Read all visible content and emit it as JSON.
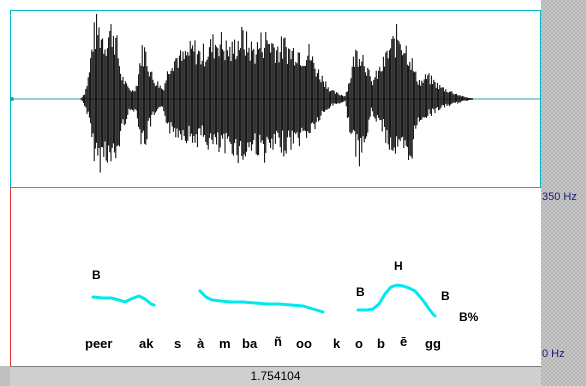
{
  "scale": {
    "top_label": "350 Hz",
    "bottom_label": "0 Hz"
  },
  "time_readout": "1.754104",
  "tones": [
    "B",
    "B",
    "H",
    "B",
    "B%"
  ],
  "syllables": [
    "peer",
    "ak",
    "s",
    "à",
    "m",
    "ba",
    "ñ",
    "oo",
    "k",
    "o",
    "b",
    "ē",
    "gg"
  ],
  "colors": {
    "pitch_trace": "#00e8f0",
    "waveform": "#000000",
    "panel_border": "#00b8c8",
    "cursor": "#e03030"
  }
}
